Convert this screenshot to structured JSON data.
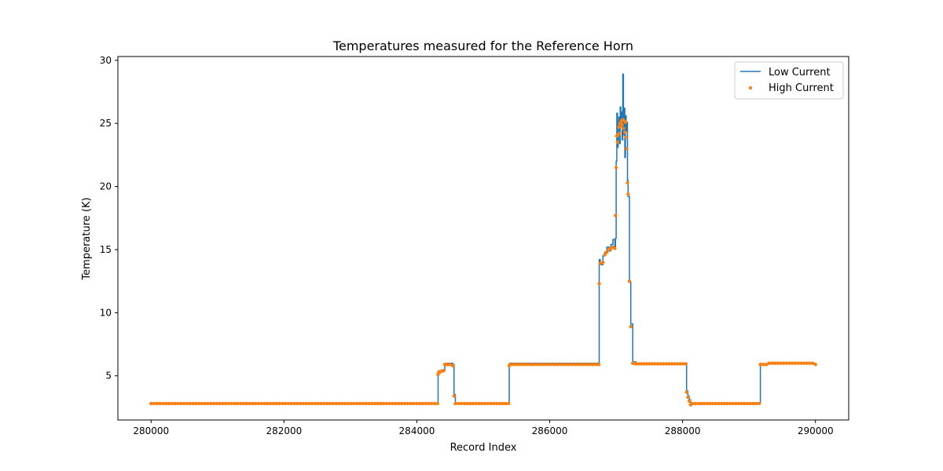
{
  "chart_data": {
    "type": "line",
    "title": "Temperatures measured for the Reference Horn",
    "xlabel": "Record Index",
    "ylabel": "Temperature (K)",
    "xlim": [
      279500,
      290500
    ],
    "ylim": [
      1.5,
      30.3
    ],
    "xticks": [
      280000,
      282000,
      284000,
      286000,
      288000,
      290000
    ],
    "xtick_labels": [
      "280000",
      "282000",
      "284000",
      "286000",
      "288000",
      "290000"
    ],
    "yticks": [
      5,
      10,
      15,
      20,
      25,
      30
    ],
    "ytick_labels": [
      "5",
      "10",
      "15",
      "20",
      "25",
      "30"
    ],
    "grid": false,
    "legend_position": "top-right",
    "colors": {
      "low": "#1f77b4",
      "high": "#ff7f0e"
    },
    "series": [
      {
        "name": "Low Current",
        "style": "line",
        "x": [
          280000,
          284310,
          284320,
          284330,
          284350,
          284380,
          284400,
          284420,
          284440,
          284460,
          284500,
          284540,
          284560,
          284580,
          285380,
          285390,
          285400,
          286740,
          286745,
          286760,
          286800,
          286830,
          286860,
          286890,
          286920,
          286950,
          286980,
          286990,
          287000,
          287010,
          287020,
          287030,
          287040,
          287050,
          287060,
          287070,
          287080,
          287090,
          287100,
          287110,
          287120,
          287130,
          287140,
          287150,
          287160,
          287170,
          287180,
          287200,
          287220,
          287250,
          287300,
          287500,
          288050,
          288060,
          288080,
          288100,
          288120,
          288150,
          289150,
          289170,
          289180,
          289300,
          290000
        ],
        "y": [
          2.8,
          2.8,
          5.2,
          5.4,
          5.3,
          5.4,
          5.4,
          6.0,
          5.9,
          6.0,
          6.0,
          5.9,
          3.5,
          2.8,
          2.8,
          5.9,
          6.0,
          6.0,
          14.2,
          13.8,
          14.5,
          14.8,
          15.2,
          14.9,
          15.4,
          15.8,
          15.1,
          15.9,
          22.0,
          25.8,
          23.1,
          24.2,
          25.5,
          23.4,
          26.3,
          24.8,
          25.9,
          23.7,
          28.9,
          24.1,
          26.2,
          22.3,
          25.6,
          24.4,
          25.1,
          20.5,
          19.2,
          12.4,
          9.1,
          6.1,
          6.0,
          6.0,
          6.0,
          3.8,
          3.4,
          3.1,
          2.7,
          2.8,
          2.8,
          6.0,
          5.9,
          6.0,
          6.0
        ]
      },
      {
        "name": "High Current",
        "style": "scatter",
        "x": [
          280000,
          284310,
          284320,
          284330,
          284350,
          284380,
          284400,
          284420,
          284440,
          284460,
          284500,
          284540,
          284560,
          284580,
          285380,
          285390,
          285400,
          286740,
          286745,
          286760,
          286800,
          286830,
          286860,
          286890,
          286920,
          286950,
          286980,
          286990,
          287000,
          287010,
          287020,
          287030,
          287040,
          287050,
          287060,
          287070,
          287080,
          287090,
          287100,
          287110,
          287120,
          287130,
          287140,
          287150,
          287160,
          287170,
          287180,
          287200,
          287220,
          287250,
          287300,
          287500,
          288050,
          288060,
          288080,
          288100,
          288120,
          288150,
          289150,
          289170,
          289180,
          289300,
          290000
        ],
        "y": [
          2.8,
          2.8,
          5.1,
          5.3,
          5.3,
          5.4,
          5.4,
          5.9,
          5.9,
          5.9,
          5.9,
          5.8,
          3.4,
          2.8,
          2.8,
          5.8,
          5.9,
          5.9,
          12.3,
          13.9,
          14.0,
          14.6,
          14.8,
          15.0,
          15.1,
          15.2,
          15.1,
          17.7,
          21.5,
          24.0,
          23.5,
          24.1,
          24.7,
          24.2,
          25.0,
          24.8,
          25.2,
          24.9,
          25.3,
          24.6,
          25.2,
          24.3,
          25.1,
          23.9,
          23.0,
          20.3,
          19.4,
          12.5,
          8.9,
          6.0,
          5.95,
          5.95,
          5.95,
          3.7,
          3.3,
          3.0,
          2.7,
          2.8,
          2.8,
          5.9,
          5.9,
          6.0,
          5.9
        ]
      }
    ]
  }
}
